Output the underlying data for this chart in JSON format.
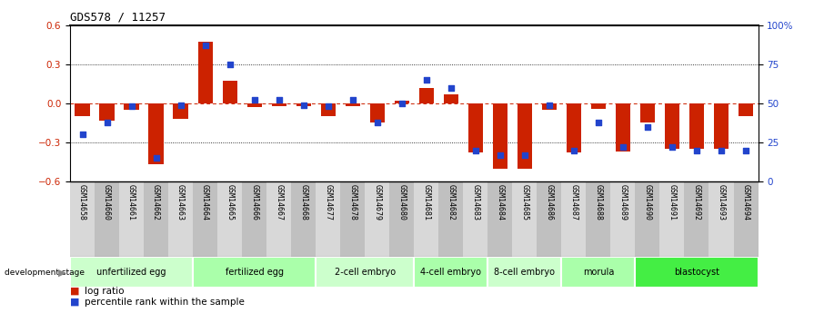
{
  "title": "GDS578 / 11257",
  "samples": [
    "GSM14658",
    "GSM14660",
    "GSM14661",
    "GSM14662",
    "GSM14663",
    "GSM14664",
    "GSM14665",
    "GSM14666",
    "GSM14667",
    "GSM14668",
    "GSM14677",
    "GSM14678",
    "GSM14679",
    "GSM14680",
    "GSM14681",
    "GSM14682",
    "GSM14683",
    "GSM14684",
    "GSM14685",
    "GSM14686",
    "GSM14687",
    "GSM14688",
    "GSM14689",
    "GSM14690",
    "GSM14691",
    "GSM14692",
    "GSM14693",
    "GSM14694"
  ],
  "log_ratio": [
    -0.1,
    -0.13,
    -0.05,
    -0.47,
    -0.12,
    0.47,
    0.17,
    -0.03,
    -0.02,
    -0.02,
    -0.1,
    -0.02,
    -0.15,
    0.02,
    0.12,
    0.07,
    -0.38,
    -0.5,
    -0.5,
    -0.05,
    -0.38,
    -0.04,
    -0.37,
    -0.15,
    -0.35,
    -0.35,
    -0.35,
    -0.1
  ],
  "percentile_rank": [
    30,
    38,
    48,
    15,
    49,
    87,
    75,
    52,
    52,
    49,
    48,
    52,
    38,
    50,
    65,
    60,
    20,
    17,
    17,
    49,
    20,
    38,
    22,
    35,
    22,
    20,
    20,
    20
  ],
  "stages": [
    {
      "label": "unfertilized egg",
      "start": 0,
      "end": 5,
      "color": "#ccffcc"
    },
    {
      "label": "fertilized egg",
      "start": 5,
      "end": 10,
      "color": "#aaffaa"
    },
    {
      "label": "2-cell embryo",
      "start": 10,
      "end": 14,
      "color": "#ccffcc"
    },
    {
      "label": "4-cell embryo",
      "start": 14,
      "end": 17,
      "color": "#aaffaa"
    },
    {
      "label": "8-cell embryo",
      "start": 17,
      "end": 20,
      "color": "#ccffcc"
    },
    {
      "label": "morula",
      "start": 20,
      "end": 23,
      "color": "#aaffaa"
    },
    {
      "label": "blastocyst",
      "start": 23,
      "end": 28,
      "color": "#44ee44"
    }
  ],
  "bar_color": "#cc2200",
  "dot_color": "#2244cc",
  "ylim_left": [
    -0.6,
    0.6
  ],
  "ylim_right": [
    0,
    100
  ],
  "yticks_left": [
    -0.6,
    -0.3,
    0.0,
    0.3,
    0.6
  ],
  "yticks_right": [
    0,
    25,
    50,
    75,
    100
  ],
  "background_color": "#ffffff"
}
